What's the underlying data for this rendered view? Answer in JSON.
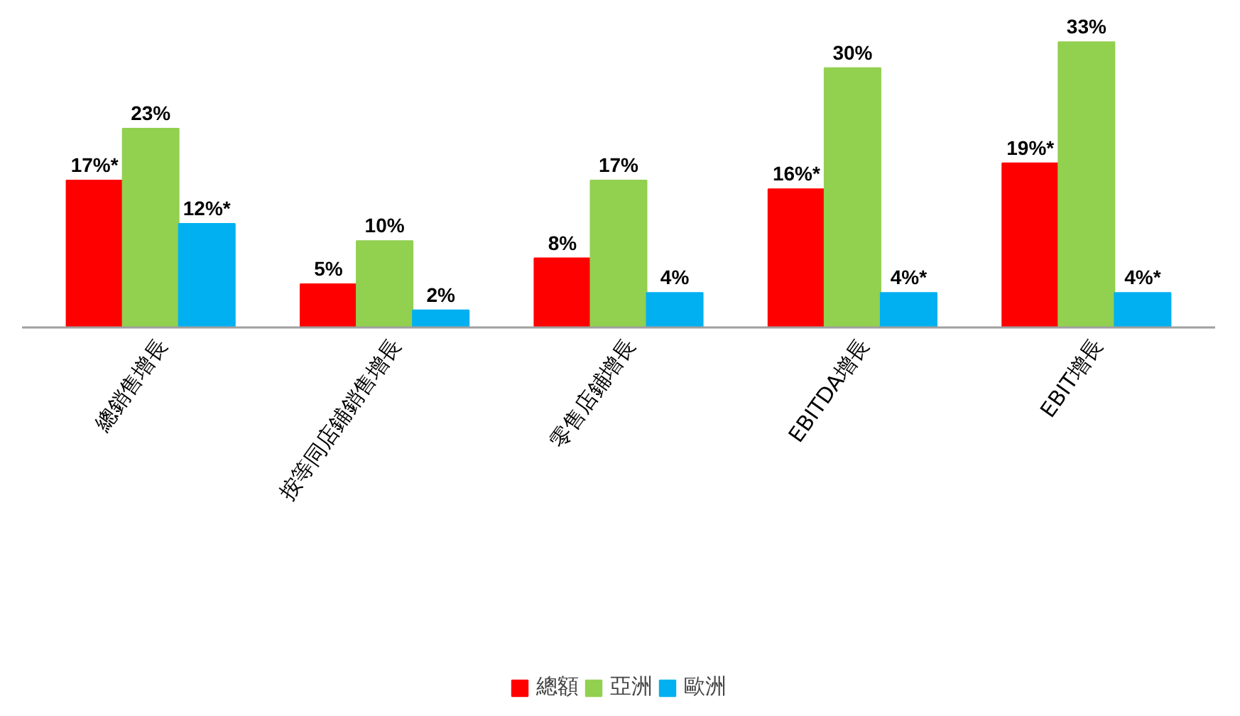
{
  "chart_data": {
    "type": "bar",
    "categories": [
      "總銷售增長",
      "按等同店鋪銷售增長",
      "零售店鋪增長",
      "EBITDA增長",
      "EBIT增長"
    ],
    "series": [
      {
        "name": "總額",
        "color": "#ff0000",
        "values": [
          17,
          5,
          8,
          16,
          19
        ],
        "value_labels": [
          "17%*",
          "5%",
          "8%",
          "16%*",
          "19%*"
        ]
      },
      {
        "name": "亞洲",
        "color": "#92d050",
        "values": [
          23,
          10,
          17,
          30,
          33
        ],
        "value_labels": [
          "23%",
          "10%",
          "17%",
          "30%",
          "33%"
        ]
      },
      {
        "name": "歐洲",
        "color": "#00b0f0",
        "values": [
          12,
          2,
          4,
          4,
          4
        ],
        "value_labels": [
          "12%*",
          "2%",
          "4%",
          "4%*",
          "4%*"
        ]
      }
    ],
    "legend": "bottom"
  }
}
